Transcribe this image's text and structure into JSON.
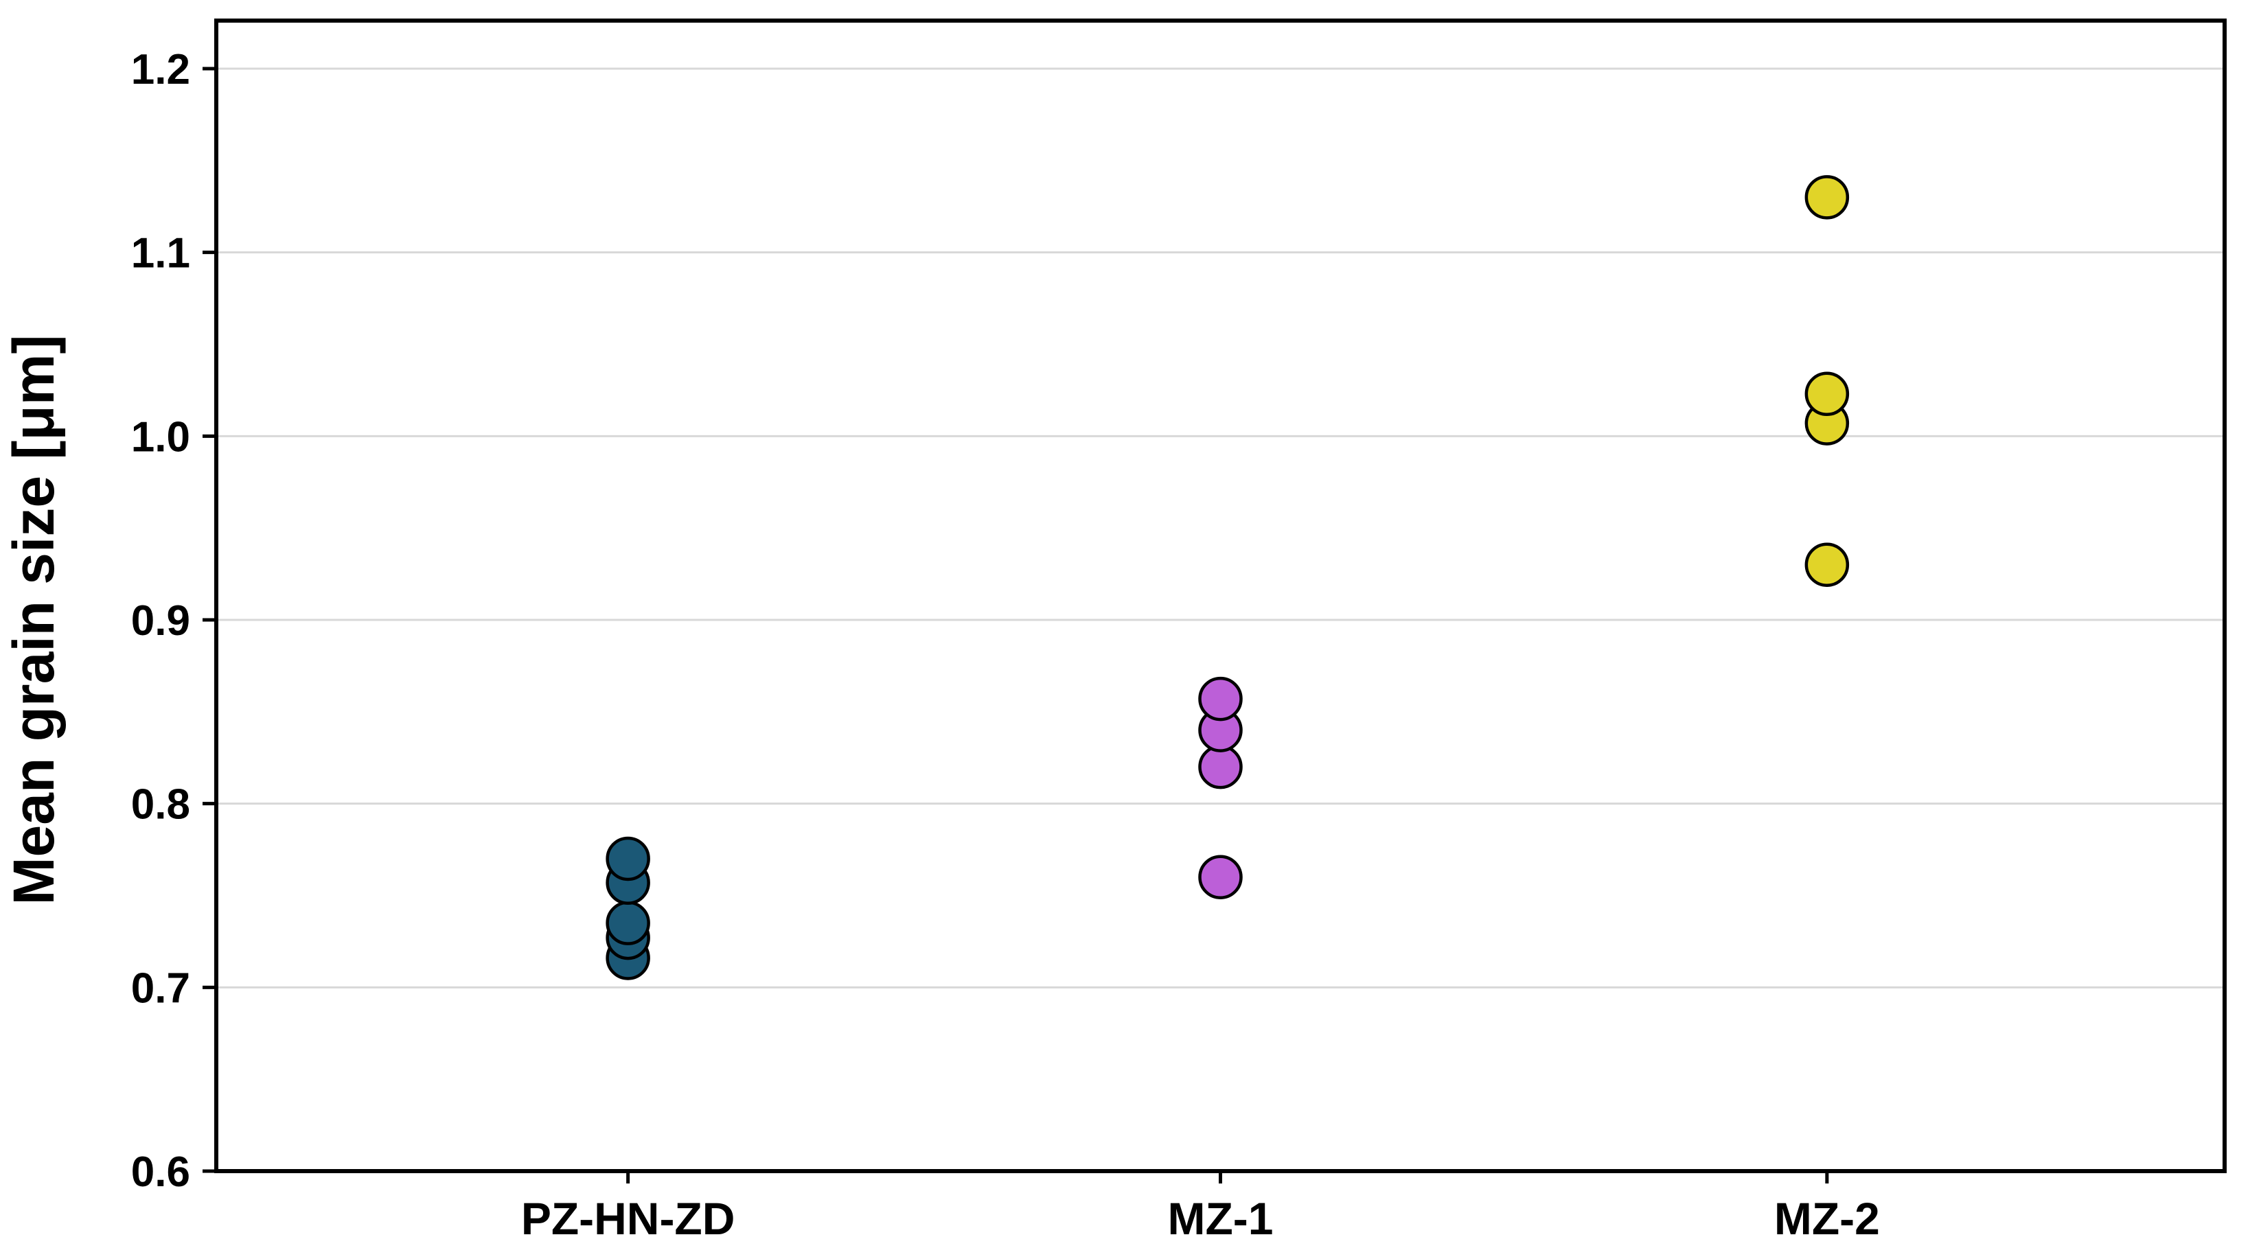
{
  "chart_data": {
    "type": "scatter",
    "title": "",
    "xlabel": "",
    "ylabel": "Mean grain size [μm]",
    "ylim": [
      0.6,
      1.2
    ],
    "yticks": [
      0.6,
      0.7,
      0.8,
      0.9,
      1.0,
      1.1,
      1.2
    ],
    "grid": "horizontal",
    "legend": "none",
    "categories": [
      "PZ-HN-ZD",
      "MZ-1",
      "MZ-2"
    ],
    "series": [
      {
        "name": "PZ-HN-ZD",
        "color": "#1b5876",
        "values": [
          0.716,
          0.727,
          0.735,
          0.757,
          0.77
        ]
      },
      {
        "name": "MZ-1",
        "color": "#bc5fd8",
        "values": [
          0.76,
          0.82,
          0.84,
          0.857
        ]
      },
      {
        "name": "MZ-2",
        "color": "#e1d428",
        "values": [
          0.93,
          1.007,
          1.023,
          1.13
        ]
      }
    ],
    "colors": {
      "marker_outline": "#000000",
      "grid_color": "#d8d8d8",
      "frame_color": "#000000",
      "plot_background": "#ffffff"
    }
  }
}
